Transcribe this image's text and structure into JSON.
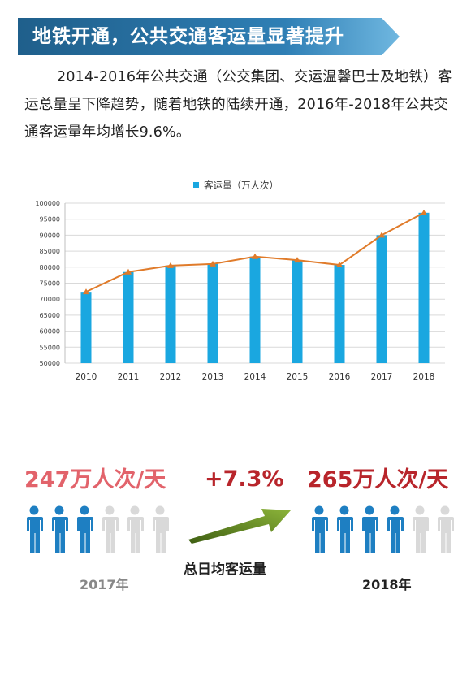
{
  "header": {
    "title": "地铁开通，公共交通客运量显著提升",
    "colors": {
      "banner": "#2b6f9e",
      "banner_light": "#4f9fd1"
    }
  },
  "intro": {
    "text": "2014-2016年公共交通（公交集团、交运温馨巴士及地铁）客运总量呈下降趋势，随着地铁的陆续开通，2016年-2018年公共交通客运量年均增长9.6%。"
  },
  "chart_data": {
    "type": "bar",
    "title": "",
    "legend": [
      "客运量（万人次）"
    ],
    "legend_position": "top-center",
    "categories": [
      "2010",
      "2011",
      "2012",
      "2013",
      "2014",
      "2015",
      "2016",
      "2017",
      "2018"
    ],
    "series": [
      {
        "name": "客运量（万人次）",
        "values": [
          72300,
          78500,
          80500,
          81000,
          83300,
          82200,
          80700,
          90000,
          97000
        ]
      }
    ],
    "overlay_line": true,
    "ylim": [
      50000,
      100000
    ],
    "yticks": [
      50000,
      55000,
      60000,
      65000,
      70000,
      75000,
      80000,
      85000,
      90000,
      95000,
      100000
    ],
    "grid": true,
    "colors": {
      "bar": "#1aa7e0",
      "line": "#e07b2a",
      "grid": "#d9d9d9"
    }
  },
  "comparison": {
    "left": {
      "value": "247万人次/天",
      "year": "2017年",
      "filled": 3,
      "total": 6,
      "color": "#e2636b",
      "year_color": "#888888"
    },
    "change": {
      "value": "+7.3%",
      "color": "#b8252b"
    },
    "right": {
      "value": "265万人次/天",
      "year": "2018年",
      "filled": 4,
      "total": 6,
      "color": "#b8252b",
      "year_color": "#222222"
    },
    "label": "总日均客运量",
    "colors": {
      "person_filled": "#1e7fc2",
      "person_empty": "#d9d9d9",
      "arrow": "#6b8e23"
    }
  }
}
